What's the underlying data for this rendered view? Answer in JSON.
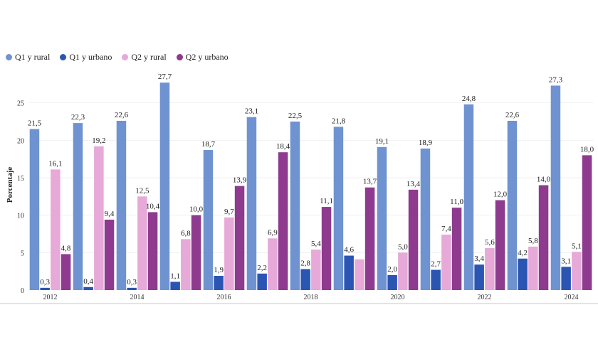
{
  "chart_data": {
    "type": "bar",
    "ylabel": "Porcentaje",
    "ylim": [
      0,
      30
    ],
    "yticks": [
      0,
      5,
      10,
      15,
      20,
      25
    ],
    "legend_position": "top-left",
    "categories": [
      "2012",
      "2013",
      "2014",
      "2015",
      "2016",
      "2017",
      "2018",
      "2019",
      "2020",
      "2021",
      "2022",
      "2023",
      "2024"
    ],
    "xtick_labels": [
      "2012",
      "",
      "2014",
      "",
      "2016",
      "",
      "2018",
      "",
      "2020",
      "",
      "2022",
      "",
      "2024"
    ],
    "series": [
      {
        "name": "Q1 y rural",
        "color": "#6f93d0",
        "values": [
          21.5,
          22.3,
          22.6,
          27.7,
          18.7,
          23.1,
          22.5,
          21.8,
          19.1,
          18.9,
          24.8,
          22.6,
          27.3
        ],
        "labels": [
          "21,5",
          "22,3",
          "22,6",
          "27,7",
          "18,7",
          "23,1",
          "22,5",
          "21,8",
          "19,1",
          "18,9",
          "24,8",
          "22,6",
          "27,3"
        ]
      },
      {
        "name": "Q1 y urbano",
        "color": "#2b55b3",
        "values": [
          0.3,
          0.4,
          0.3,
          1.1,
          1.9,
          2.2,
          2.8,
          4.6,
          2.0,
          2.7,
          3.4,
          4.2,
          3.1
        ],
        "labels": [
          "0,3",
          "0,4",
          "0,3",
          "1,1",
          "1,9",
          "2,2",
          "2,8",
          "4,6",
          "2,0",
          "2,7",
          "3,4",
          "4,2",
          "3,1"
        ]
      },
      {
        "name": "Q2 y rural",
        "color": "#e6a9d8",
        "values": [
          16.1,
          19.2,
          12.5,
          6.8,
          9.7,
          6.9,
          5.4,
          4.1,
          5.0,
          7.4,
          5.6,
          5.8,
          5.1
        ],
        "labels": [
          "16,1",
          "19,2",
          "12,5",
          "6,8",
          "9,7",
          "6,9",
          "5,4",
          "",
          "5,0",
          "7,4",
          "5,6",
          "5,8",
          "5,1"
        ]
      },
      {
        "name": "Q2 y urbano",
        "color": "#8e3a8e",
        "values": [
          4.8,
          9.4,
          10.4,
          10.0,
          13.9,
          18.4,
          11.1,
          13.7,
          13.4,
          11.0,
          12.0,
          14.0,
          18.0
        ],
        "labels": [
          "4,8",
          "9,4",
          "10,4",
          "10,0",
          "13,9",
          "18,4",
          "11,1",
          "13,7",
          "13,4",
          "11,0",
          "12,0",
          "14,0",
          "18,0"
        ]
      }
    ]
  }
}
